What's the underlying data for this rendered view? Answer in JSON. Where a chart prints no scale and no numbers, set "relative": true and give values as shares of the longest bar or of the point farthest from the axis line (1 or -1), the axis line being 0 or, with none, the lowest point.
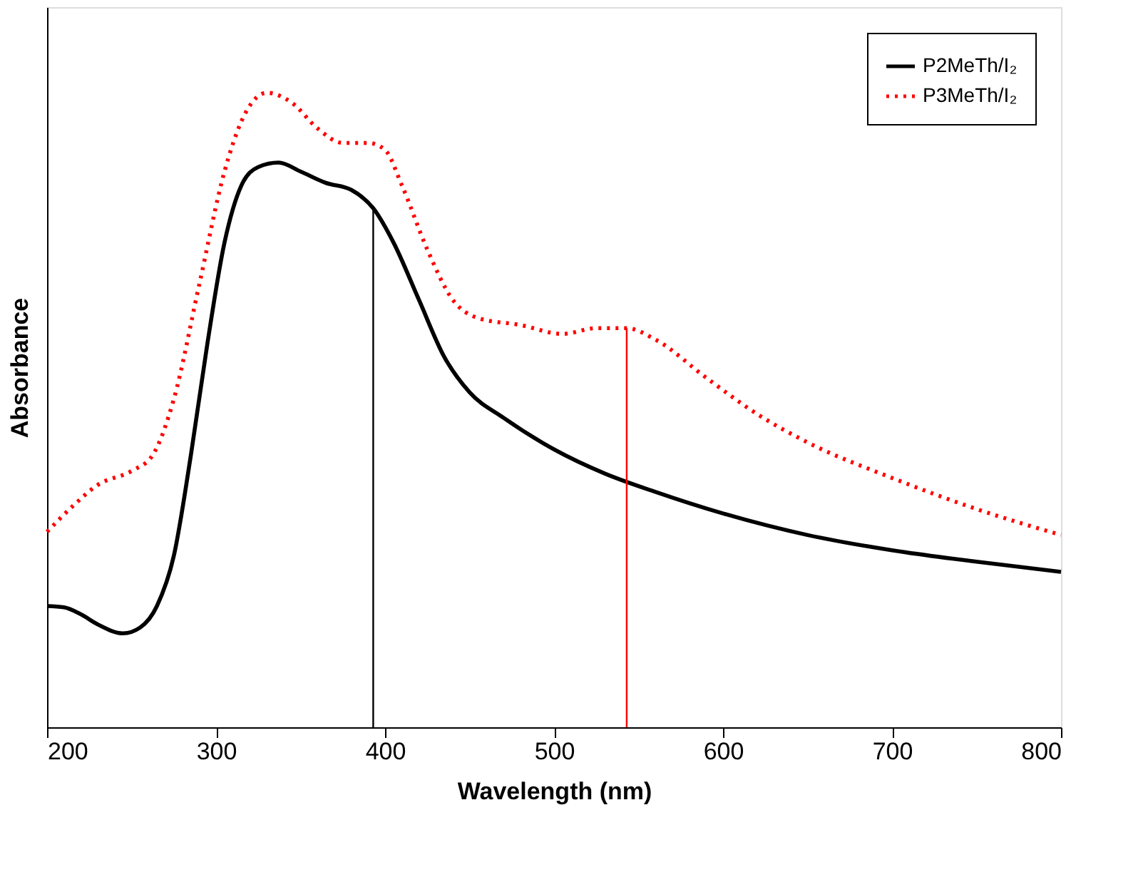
{
  "chart_data": {
    "type": "line",
    "relative": true,
    "xlabel": "Wavelength (nm)",
    "ylabel": "Absorbance",
    "xlim": [
      200,
      800
    ],
    "xticks": [
      200,
      300,
      400,
      500,
      600,
      700,
      800
    ],
    "grid": false,
    "legend": "top right",
    "marker": "none",
    "series": [
      {
        "name": "P2MeTh/I₂",
        "color": "#000000",
        "line_style": "solid",
        "x": [
          200,
          210,
          220,
          230,
          245,
          255,
          265,
          275,
          285,
          295,
          305,
          315,
          325,
          337,
          350,
          365,
          380,
          393,
          405,
          420,
          435,
          450,
          470,
          500,
          530,
          560,
          600,
          650,
          700,
          750,
          800
        ],
        "values": [
          0.191,
          0.189,
          0.178,
          0.162,
          0.148,
          0.157,
          0.191,
          0.27,
          0.427,
          0.607,
          0.764,
          0.854,
          0.883,
          0.89,
          0.876,
          0.858,
          0.847,
          0.818,
          0.764,
          0.674,
          0.584,
          0.528,
          0.488,
          0.438,
          0.4,
          0.371,
          0.337,
          0.303,
          0.279,
          0.261,
          0.245
        ]
      },
      {
        "name": "P3MeTh/I₂",
        "color": "#ff0000",
        "line_style": "dotted",
        "x": [
          200,
          215,
          230,
          250,
          262,
          275,
          290,
          305,
          315,
          330,
          345,
          360,
          375,
          390,
          400,
          410,
          425,
          440,
          455,
          480,
          505,
          525,
          543,
          560,
          590,
          620,
          650,
          700,
          750,
          800
        ],
        "values": [
          0.308,
          0.348,
          0.382,
          0.404,
          0.427,
          0.517,
          0.697,
          0.876,
          0.955,
          1.0,
          0.984,
          0.944,
          0.921,
          0.921,
          0.91,
          0.854,
          0.753,
          0.674,
          0.645,
          0.634,
          0.62,
          0.629,
          0.629,
          0.611,
          0.551,
          0.494,
          0.449,
          0.393,
          0.344,
          0.303
        ]
      }
    ],
    "ref_lines": [
      {
        "axis": "x",
        "value": 393,
        "color": "#000000"
      },
      {
        "axis": "x",
        "value": 543,
        "color": "#ff0000"
      }
    ]
  }
}
